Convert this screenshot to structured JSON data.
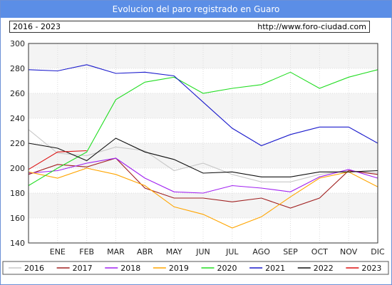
{
  "header": {
    "title": "Evolucion del paro registrado en Guaro",
    "period": "2016 - 2023",
    "source": "http://www.foro-ciudad.com"
  },
  "chart_data": {
    "type": "line",
    "categories": [
      "",
      "ENE",
      "FEB",
      "MAR",
      "ABR",
      "MAY",
      "JUN",
      "JUL",
      "AGO",
      "SEP",
      "OCT",
      "NOV",
      "DIC"
    ],
    "ylim": [
      140,
      300
    ],
    "yticks": [
      140,
      160,
      180,
      200,
      220,
      240,
      260,
      280,
      300
    ],
    "grid": true,
    "legend_placement": "bottom",
    "series": [
      {
        "name": "2016",
        "color": "#c8c8c8",
        "values": [
          231,
          212,
          210,
          217,
          214,
          198,
          204,
          195,
          189,
          189,
          195,
          198,
          196
        ]
      },
      {
        "name": "2017",
        "color": "#a02020",
        "values": [
          195,
          203,
          201,
          208,
          184,
          176,
          176,
          173,
          176,
          168,
          176,
          198,
          195
        ]
      },
      {
        "name": "2018",
        "color": "#a020f0",
        "values": [
          196,
          198,
          204,
          208,
          192,
          181,
          180,
          186,
          184,
          181,
          193,
          199,
          192
        ]
      },
      {
        "name": "2019",
        "color": "#ffa500",
        "values": [
          197,
          192,
          200,
          195,
          186,
          169,
          163,
          152,
          161,
          177,
          192,
          197,
          185
        ]
      },
      {
        "name": "2020",
        "color": "#22dd22",
        "values": [
          186,
          200,
          213,
          255,
          269,
          273,
          260,
          264,
          267,
          277,
          264,
          273,
          279
        ]
      },
      {
        "name": "2021",
        "color": "#1a1acc",
        "values": [
          279,
          278,
          283,
          276,
          277,
          274,
          253,
          232,
          218,
          227,
          233,
          233,
          220
        ]
      },
      {
        "name": "2022",
        "color": "#111111",
        "values": [
          220,
          216,
          206,
          224,
          213,
          207,
          196,
          197,
          193,
          193,
          197,
          197,
          198
        ]
      },
      {
        "name": "2023",
        "color": "#dd1111",
        "values": [
          199,
          213,
          214,
          null,
          null,
          null,
          null,
          null,
          null,
          null,
          null,
          null,
          null
        ]
      }
    ]
  }
}
